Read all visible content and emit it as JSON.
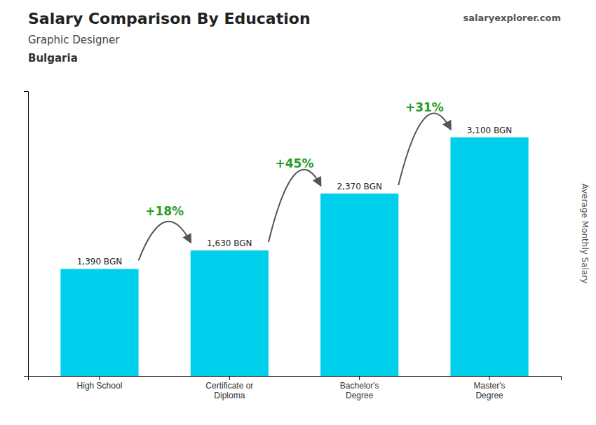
{
  "chart_data": {
    "type": "bar",
    "title": "Salary Comparison By Education",
    "subtitle": "Graphic Designer",
    "country": "Bulgaria",
    "brand": "salaryexplorer.com",
    "ylabel": "Average Monthly Salary",
    "categories": [
      "High School",
      "Certificate or\nDiploma",
      "Bachelor's\nDegree",
      "Master's\nDegree"
    ],
    "values": [
      1390,
      1630,
      2370,
      3100
    ],
    "value_labels": [
      "1,390 BGN",
      "1,630 BGN",
      "2,370 BGN",
      "3,100 BGN"
    ],
    "data_labels": true,
    "annotations": [
      "+18%",
      "+45%",
      "+31%"
    ],
    "color": "#00cfec",
    "ylim": [
      0,
      3700
    ],
    "tick_labels": "x",
    "grid": false
  }
}
